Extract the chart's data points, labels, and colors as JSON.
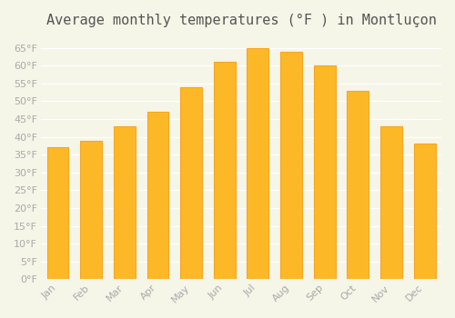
{
  "title": "Average monthly temperatures (°F ) in Montluçon",
  "months": [
    "Jan",
    "Feb",
    "Mar",
    "Apr",
    "May",
    "Jun",
    "Jul",
    "Aug",
    "Sep",
    "Oct",
    "Nov",
    "Dec"
  ],
  "values": [
    37,
    39,
    43,
    47,
    54,
    61,
    65,
    64,
    60,
    53,
    43,
    38
  ],
  "bar_color": "#FDB827",
  "bar_edge_color": "#F5A623",
  "background_color": "#F5F5E8",
  "grid_color": "#FFFFFF",
  "text_color": "#AAAAAA",
  "ylim": [
    0,
    68
  ],
  "yticks": [
    0,
    5,
    10,
    15,
    20,
    25,
    30,
    35,
    40,
    45,
    50,
    55,
    60,
    65
  ],
  "title_fontsize": 11
}
